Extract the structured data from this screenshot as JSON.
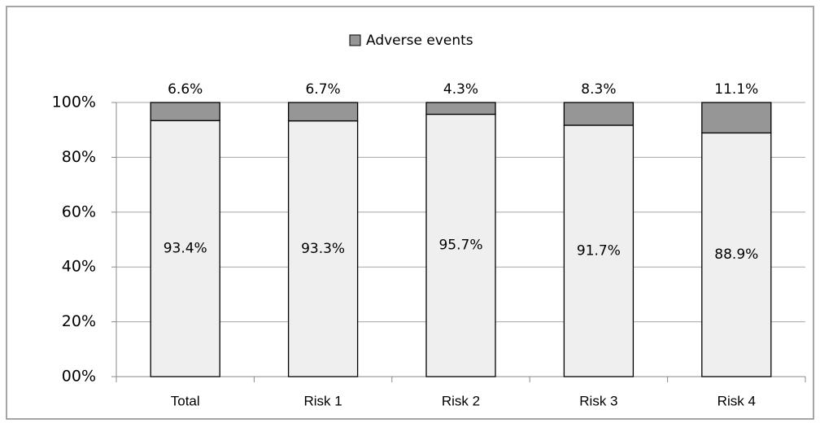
{
  "chart_data": {
    "type": "stacked_bar",
    "categories": [
      "Total",
      "Risk 1",
      "Risk 2",
      "Risk 3",
      "Risk 4"
    ],
    "series": [
      {
        "color": "#efefef",
        "values": [
          93.4,
          93.3,
          95.7,
          91.7,
          88.9
        ],
        "value_labels": [
          "93.4%",
          "93.3%",
          "95.7%",
          "91.7%",
          "88.9%"
        ]
      },
      {
        "name": "Adverse events",
        "color": "#969696",
        "values": [
          6.6,
          6.7,
          4.3,
          8.3,
          11.1
        ],
        "value_labels": [
          "6.6%",
          "6.7%",
          "4.3%",
          "8.3%",
          "11.1%"
        ]
      }
    ],
    "ylim": [
      0,
      100
    ],
    "yticks": [
      {
        "value": 0,
        "label": "00%"
      },
      {
        "value": 20,
        "label": "20%"
      },
      {
        "value": 40,
        "label": "40%"
      },
      {
        "value": 60,
        "label": "60%"
      },
      {
        "value": 80,
        "label": "80%"
      },
      {
        "value": 100,
        "label": "100%"
      }
    ],
    "grid": true,
    "legend": "top"
  }
}
